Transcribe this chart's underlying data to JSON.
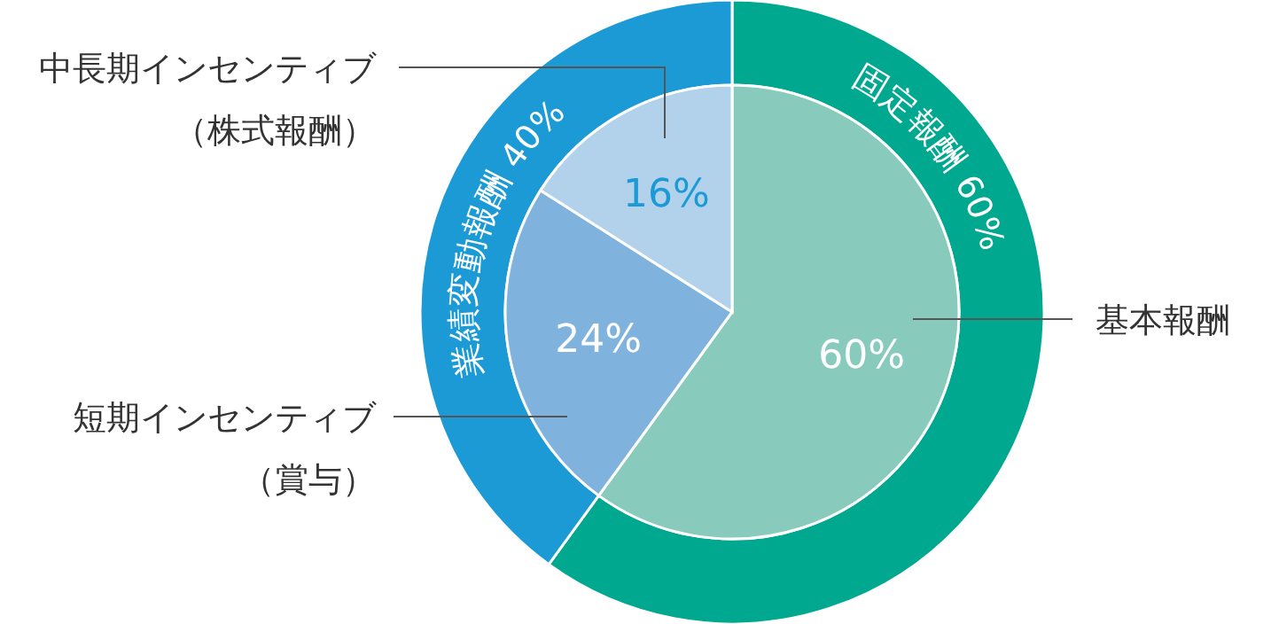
{
  "chart_data": [
    {
      "type": "donut",
      "categories": [
        "固定報酬 60%",
        "業績変動報酬 40%"
      ],
      "values": [
        60,
        40
      ],
      "colors": [
        "#00a88f",
        "#1b9ad6"
      ]
    },
    {
      "type": "pie",
      "categories": [
        "基本報酬",
        "短期インセンティブ（賞与）",
        "中長期インセンティブ（株式報酬）"
      ],
      "values": [
        60,
        24,
        16
      ],
      "colors": [
        "#88cbbd",
        "#7fb3dd",
        "#b2d2eb"
      ],
      "value_labels": [
        "60%",
        "24%",
        "16%"
      ]
    }
  ]
}
